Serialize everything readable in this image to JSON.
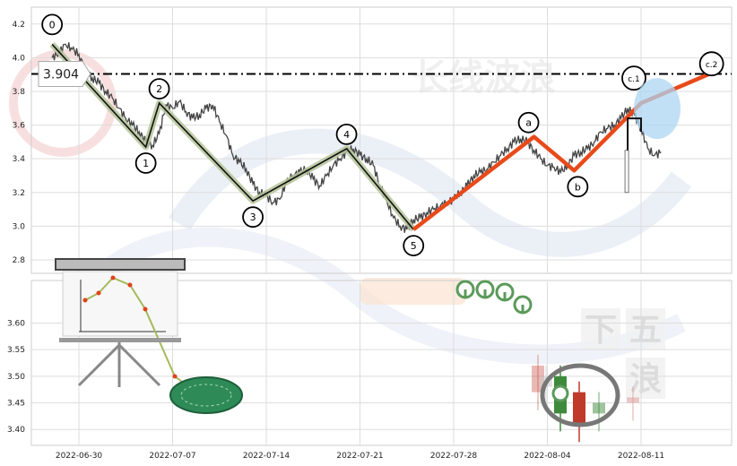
{
  "chart_data": [
    {
      "type": "line",
      "panel": "price",
      "ylim": [
        2.72,
        4.3
      ],
      "yticks": [
        2.8,
        3.0,
        3.2,
        3.4,
        3.6,
        3.8,
        4.0,
        4.2
      ],
      "x_dates": [
        "2022-06-30",
        "2022-07-07",
        "2022-07-14",
        "2022-07-21",
        "2022-07-28",
        "2022-08-04",
        "2022-08-11"
      ],
      "horizontal_line": {
        "value": 3.904,
        "label": "3.904"
      },
      "price_series": {
        "x": [
          -2.0,
          -1.5,
          -1.0,
          -0.5,
          0.0,
          0.5,
          1.0,
          1.5,
          2.0,
          2.5,
          3.0,
          3.5,
          4.0,
          4.5,
          5.0,
          5.5,
          6.0,
          6.5,
          7.0,
          7.5,
          8.0,
          8.5,
          9.0,
          9.5,
          10.0,
          10.5,
          11.0,
          11.5,
          12.0,
          12.5,
          13.0,
          13.5,
          14.0,
          14.5,
          15.0,
          15.5,
          16.0,
          16.5,
          17.0,
          17.5,
          18.0,
          18.5,
          19.0,
          19.5,
          20.0,
          20.5,
          21.0,
          21.5,
          22.0,
          22.5,
          23.0,
          23.5,
          24.0,
          24.5,
          25.0,
          25.5,
          26.0,
          26.5,
          27.0,
          27.5,
          28.0,
          28.5,
          29.0,
          29.5,
          30.0,
          30.5,
          31.0,
          31.5,
          32.0,
          32.5,
          33.0,
          33.5,
          34.0,
          34.5,
          35.0,
          35.5,
          36.0,
          36.5,
          37.0,
          37.5,
          38.0,
          38.5,
          39.0,
          39.5,
          40.0,
          40.5,
          41.0,
          41.5,
          42.0,
          42.5,
          43.0,
          43.5
        ],
        "y": [
          4.0,
          4.03,
          4.08,
          4.05,
          4.02,
          3.92,
          3.88,
          3.85,
          3.8,
          3.76,
          3.7,
          3.64,
          3.6,
          3.56,
          3.5,
          3.48,
          3.55,
          3.72,
          3.7,
          3.74,
          3.68,
          3.64,
          3.66,
          3.7,
          3.72,
          3.62,
          3.54,
          3.42,
          3.38,
          3.34,
          3.25,
          3.2,
          3.18,
          3.14,
          3.16,
          3.26,
          3.3,
          3.32,
          3.34,
          3.28,
          3.24,
          3.3,
          3.36,
          3.4,
          3.44,
          3.46,
          3.42,
          3.4,
          3.36,
          3.24,
          3.15,
          3.05,
          3.0,
          2.98,
          3.04,
          3.05,
          3.08,
          3.1,
          3.12,
          3.14,
          3.16,
          3.2,
          3.24,
          3.3,
          3.32,
          3.34,
          3.38,
          3.42,
          3.46,
          3.5,
          3.52,
          3.5,
          3.45,
          3.4,
          3.36,
          3.35,
          3.32,
          3.36,
          3.42,
          3.44,
          3.46,
          3.5,
          3.56,
          3.58,
          3.6,
          3.64,
          3.7,
          3.66,
          3.58,
          3.46,
          3.42,
          3.44
        ]
      },
      "wave_points": [
        {
          "label": "0",
          "x": -2.0,
          "y": 4.08
        },
        {
          "label": "1",
          "x": 5.0,
          "y": 3.47
        },
        {
          "label": "2",
          "x": 6.0,
          "y": 3.73
        },
        {
          "label": "3",
          "x": 13.0,
          "y": 3.15
        },
        {
          "label": "4",
          "x": 20.0,
          "y": 3.46
        },
        {
          "label": "5",
          "x": 25.0,
          "y": 2.98
        },
        {
          "label": "a",
          "x": 34.0,
          "y": 3.53
        },
        {
          "label": "b",
          "x": 37.0,
          "y": 3.33
        },
        {
          "label": "c.1",
          "x": 42.0,
          "y": 3.73
        },
        {
          "label": "c.2",
          "x": 47.0,
          "y": 3.9
        }
      ]
    },
    {
      "type": "bar",
      "panel": "lower",
      "ylim": [
        3.37,
        3.68
      ],
      "yticks": [
        3.4,
        3.45,
        3.5,
        3.55,
        3.6
      ],
      "x_dates": [
        "2022-06-30",
        "2022-07-07",
        "2022-07-14",
        "2022-07-21",
        "2022-07-28",
        "2022-08-04",
        "2022-08-11"
      ]
    }
  ],
  "watermark": {
    "top_text": "长线波浪",
    "side_chars": [
      "下",
      "五",
      "浪"
    ]
  },
  "colors": {
    "price_line": "#444444",
    "impulse_wave": "#b5c49a",
    "corrective_wave": "#e84a1a",
    "label_circle_stroke": "#000000",
    "dash_line": "#000000",
    "grid": "#dddddd",
    "forecast_ellipse": "#aed6f1",
    "candle_up": "#3d8a3d",
    "candle_down": "#c0392b"
  }
}
